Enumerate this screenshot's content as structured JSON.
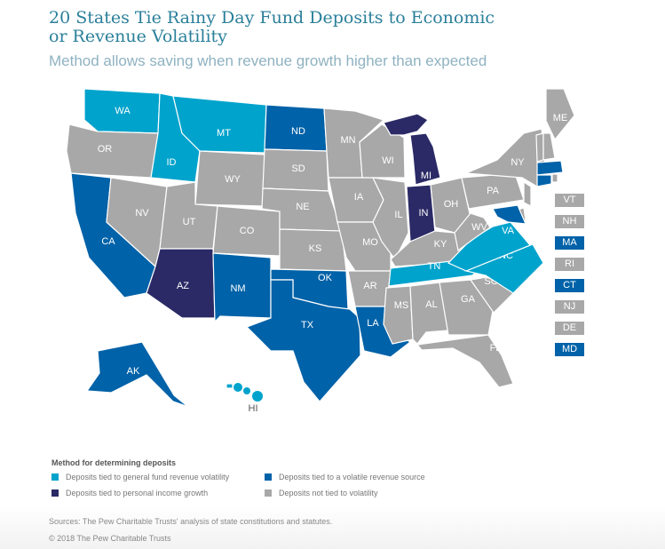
{
  "header": {
    "title": "20 States Tie Rainy Day Fund Deposits to Economic or Revenue Volatility",
    "subtitle": "Method allows saving when revenue growth higher than expected"
  },
  "colors": {
    "general_fund": "#00a3cc",
    "personal_income": "#2b2a66",
    "volatile_source": "#0062a8",
    "not_tied": "#a8a8a8"
  },
  "states": {
    "WA": "general_fund",
    "OR": "not_tied",
    "CA": "volatile_source",
    "NV": "not_tied",
    "ID": "general_fund",
    "MT": "general_fund",
    "WY": "not_tied",
    "UT": "not_tied",
    "AZ": "personal_income",
    "CO": "not_tied",
    "NM": "volatile_source",
    "ND": "volatile_source",
    "SD": "not_tied",
    "NE": "not_tied",
    "KS": "not_tied",
    "OK": "volatile_source",
    "TX": "volatile_source",
    "MN": "not_tied",
    "IA": "not_tied",
    "MO": "not_tied",
    "AR": "not_tied",
    "LA": "volatile_source",
    "WI": "not_tied",
    "IL": "not_tied",
    "MI": "personal_income",
    "IN": "personal_income",
    "OH": "not_tied",
    "KY": "not_tied",
    "TN": "general_fund",
    "MS": "not_tied",
    "AL": "not_tied",
    "GA": "not_tied",
    "FL": "not_tied",
    "SC": "not_tied",
    "NC": "general_fund",
    "VA": "general_fund",
    "WV": "not_tied",
    "PA": "not_tied",
    "NY": "not_tied",
    "ME": "not_tied",
    "VT": "not_tied",
    "NH": "not_tied",
    "MA": "volatile_source",
    "RI": "not_tied",
    "CT": "volatile_source",
    "NJ": "not_tied",
    "DE": "not_tied",
    "MD": "volatile_source",
    "AK": "volatile_source",
    "HI": "general_fund"
  },
  "small_states": [
    "VT",
    "NH",
    "MA",
    "RI",
    "CT",
    "NJ",
    "DE",
    "MD"
  ],
  "legend": {
    "title": "Method for determining deposits",
    "items": [
      {
        "key": "general_fund",
        "label": "Deposits tied to general fund revenue volatility"
      },
      {
        "key": "volatile_source",
        "label": "Deposits tied to a volatile revenue source"
      },
      {
        "key": "personal_income",
        "label": "Deposits tied to personal income growth"
      },
      {
        "key": "not_tied",
        "label": "Deposits not tied to volatility"
      }
    ]
  },
  "footer": {
    "sources": "Sources: The Pew Charitable Trusts' analysis of state constitutions and statutes.",
    "copyright": "© 2018 The Pew Charitable Trusts"
  }
}
